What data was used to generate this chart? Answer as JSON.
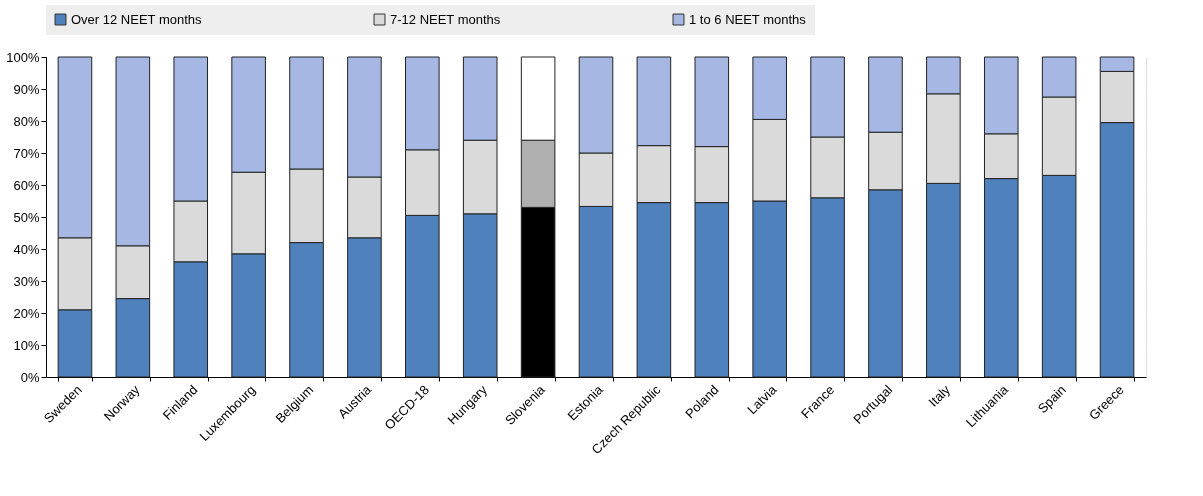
{
  "chart_data": {
    "type": "bar",
    "stacked": true,
    "categories": [
      "Sweden",
      "Norway",
      "Finland",
      "Luxembourg",
      "Belgium",
      "Austria",
      "OECD-18",
      "Hungary",
      "Slovenia",
      "Estonia",
      "Czech Republic",
      "Poland",
      "Latvia",
      "France",
      "Portugal",
      "Italy",
      "Lithuania",
      "Spain",
      "Greece"
    ],
    "series": [
      {
        "name": "Over 12 NEET months",
        "color": "#4f81bd",
        "colors": [
          "#4f81bd",
          "#4f81bd",
          "#4f81bd",
          "#4f81bd",
          "#4f81bd",
          "#4f81bd",
          "#4f81bd",
          "#4f81bd",
          "#000000",
          "#4f81bd",
          "#4f81bd",
          "#4f81bd",
          "#4f81bd",
          "#4f81bd",
          "#4f81bd",
          "#4f81bd",
          "#4f81bd",
          "#4f81bd",
          "#4f81bd"
        ],
        "values": [
          21,
          24.5,
          36,
          38.5,
          42,
          43.5,
          50.5,
          51,
          53,
          53.3,
          54.5,
          54.5,
          55,
          56,
          58.5,
          60.5,
          62,
          63,
          79.5
        ]
      },
      {
        "name": "7-12 NEET months",
        "color": "#dadada",
        "colors": [
          "#dadada",
          "#dadada",
          "#dadada",
          "#dadada",
          "#dadada",
          "#dadada",
          "#dadada",
          "#dadada",
          "#afafaf",
          "#dadada",
          "#dadada",
          "#dadada",
          "#dadada",
          "#dadada",
          "#dadada",
          "#dadada",
          "#dadada",
          "#dadada",
          "#dadada"
        ],
        "values": [
          22.5,
          16.5,
          19,
          25.5,
          23,
          19,
          20.5,
          23,
          21,
          16.7,
          17.8,
          17.5,
          25.5,
          19,
          18,
          28,
          14,
          24.5,
          16
        ]
      },
      {
        "name": "1 to 6 NEET months",
        "color": "#a7b7e3",
        "colors": [
          "#a7b7e3",
          "#a7b7e3",
          "#a7b7e3",
          "#a7b7e3",
          "#a7b7e3",
          "#a7b7e3",
          "#a7b7e3",
          "#a7b7e3",
          "#ffffff",
          "#a7b7e3",
          "#a7b7e3",
          "#a7b7e3",
          "#a7b7e3",
          "#a7b7e3",
          "#a7b7e3",
          "#a7b7e3",
          "#a7b7e3",
          "#a7b7e3",
          "#a7b7e3"
        ],
        "values": [
          56.5,
          59,
          45,
          36,
          35,
          37.5,
          29,
          26,
          26,
          30,
          27.7,
          28,
          19.5,
          25,
          23.5,
          11.5,
          24,
          12.5,
          4.5
        ]
      }
    ],
    "ylim": [
      0,
      100
    ],
    "yticks": [
      {
        "value": 0,
        "label": "0%"
      },
      {
        "value": 10,
        "label": "10%"
      },
      {
        "value": 20,
        "label": "20%"
      },
      {
        "value": 30,
        "label": "30%"
      },
      {
        "value": 40,
        "label": "40%"
      },
      {
        "value": 50,
        "label": "50%"
      },
      {
        "value": 60,
        "label": "60%"
      },
      {
        "value": 70,
        "label": "70%"
      },
      {
        "value": 80,
        "label": "80%"
      },
      {
        "value": 90,
        "label": "90%"
      },
      {
        "value": 100,
        "label": "100%"
      }
    ],
    "grid": true,
    "legend": "top"
  }
}
